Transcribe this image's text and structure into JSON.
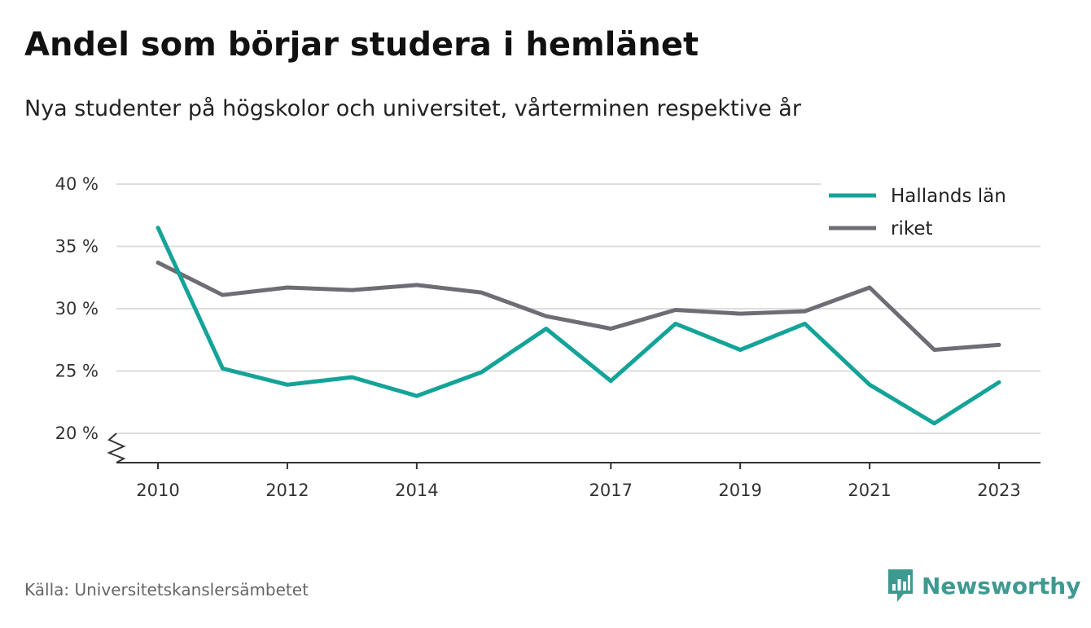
{
  "header": {
    "title": "Andel som börjar studera i hemlänet",
    "subtitle": "Nya studenter på högskolor och universitet, vårterminen respektive år"
  },
  "footer": {
    "source": "Källa: Universitetskanslersämbetet",
    "brand": "Newsworthy",
    "brand_icon": "bar-chart-speech-bubble-icon",
    "brand_color": "#3e9a91"
  },
  "chart_data": {
    "type": "line",
    "x": [
      2010,
      2011,
      2012,
      2013,
      2014,
      2015,
      2016,
      2017,
      2018,
      2019,
      2020,
      2021,
      2022,
      2023
    ],
    "x_ticks": [
      2010,
      2012,
      2014,
      2017,
      2019,
      2021,
      2023
    ],
    "y_ticks": [
      20,
      25,
      30,
      35,
      40
    ],
    "y_tick_labels": [
      "20 %",
      "25 %",
      "30 %",
      "35 %",
      "40 %"
    ],
    "ylim": [
      20,
      40
    ],
    "y_axis_break": true,
    "grid": "horizontal",
    "legend_position": "top-right",
    "series": [
      {
        "name": "Hallands län",
        "color": "#14a398",
        "values": [
          36.5,
          25.2,
          23.9,
          24.5,
          23.0,
          24.9,
          28.4,
          24.2,
          28.8,
          26.7,
          28.8,
          23.9,
          20.8,
          24.1
        ]
      },
      {
        "name": "riket",
        "color": "#6e6d75",
        "values": [
          33.7,
          31.1,
          31.7,
          31.5,
          31.9,
          31.3,
          29.4,
          28.4,
          29.9,
          29.6,
          29.8,
          31.7,
          26.7,
          27.1
        ]
      }
    ]
  }
}
